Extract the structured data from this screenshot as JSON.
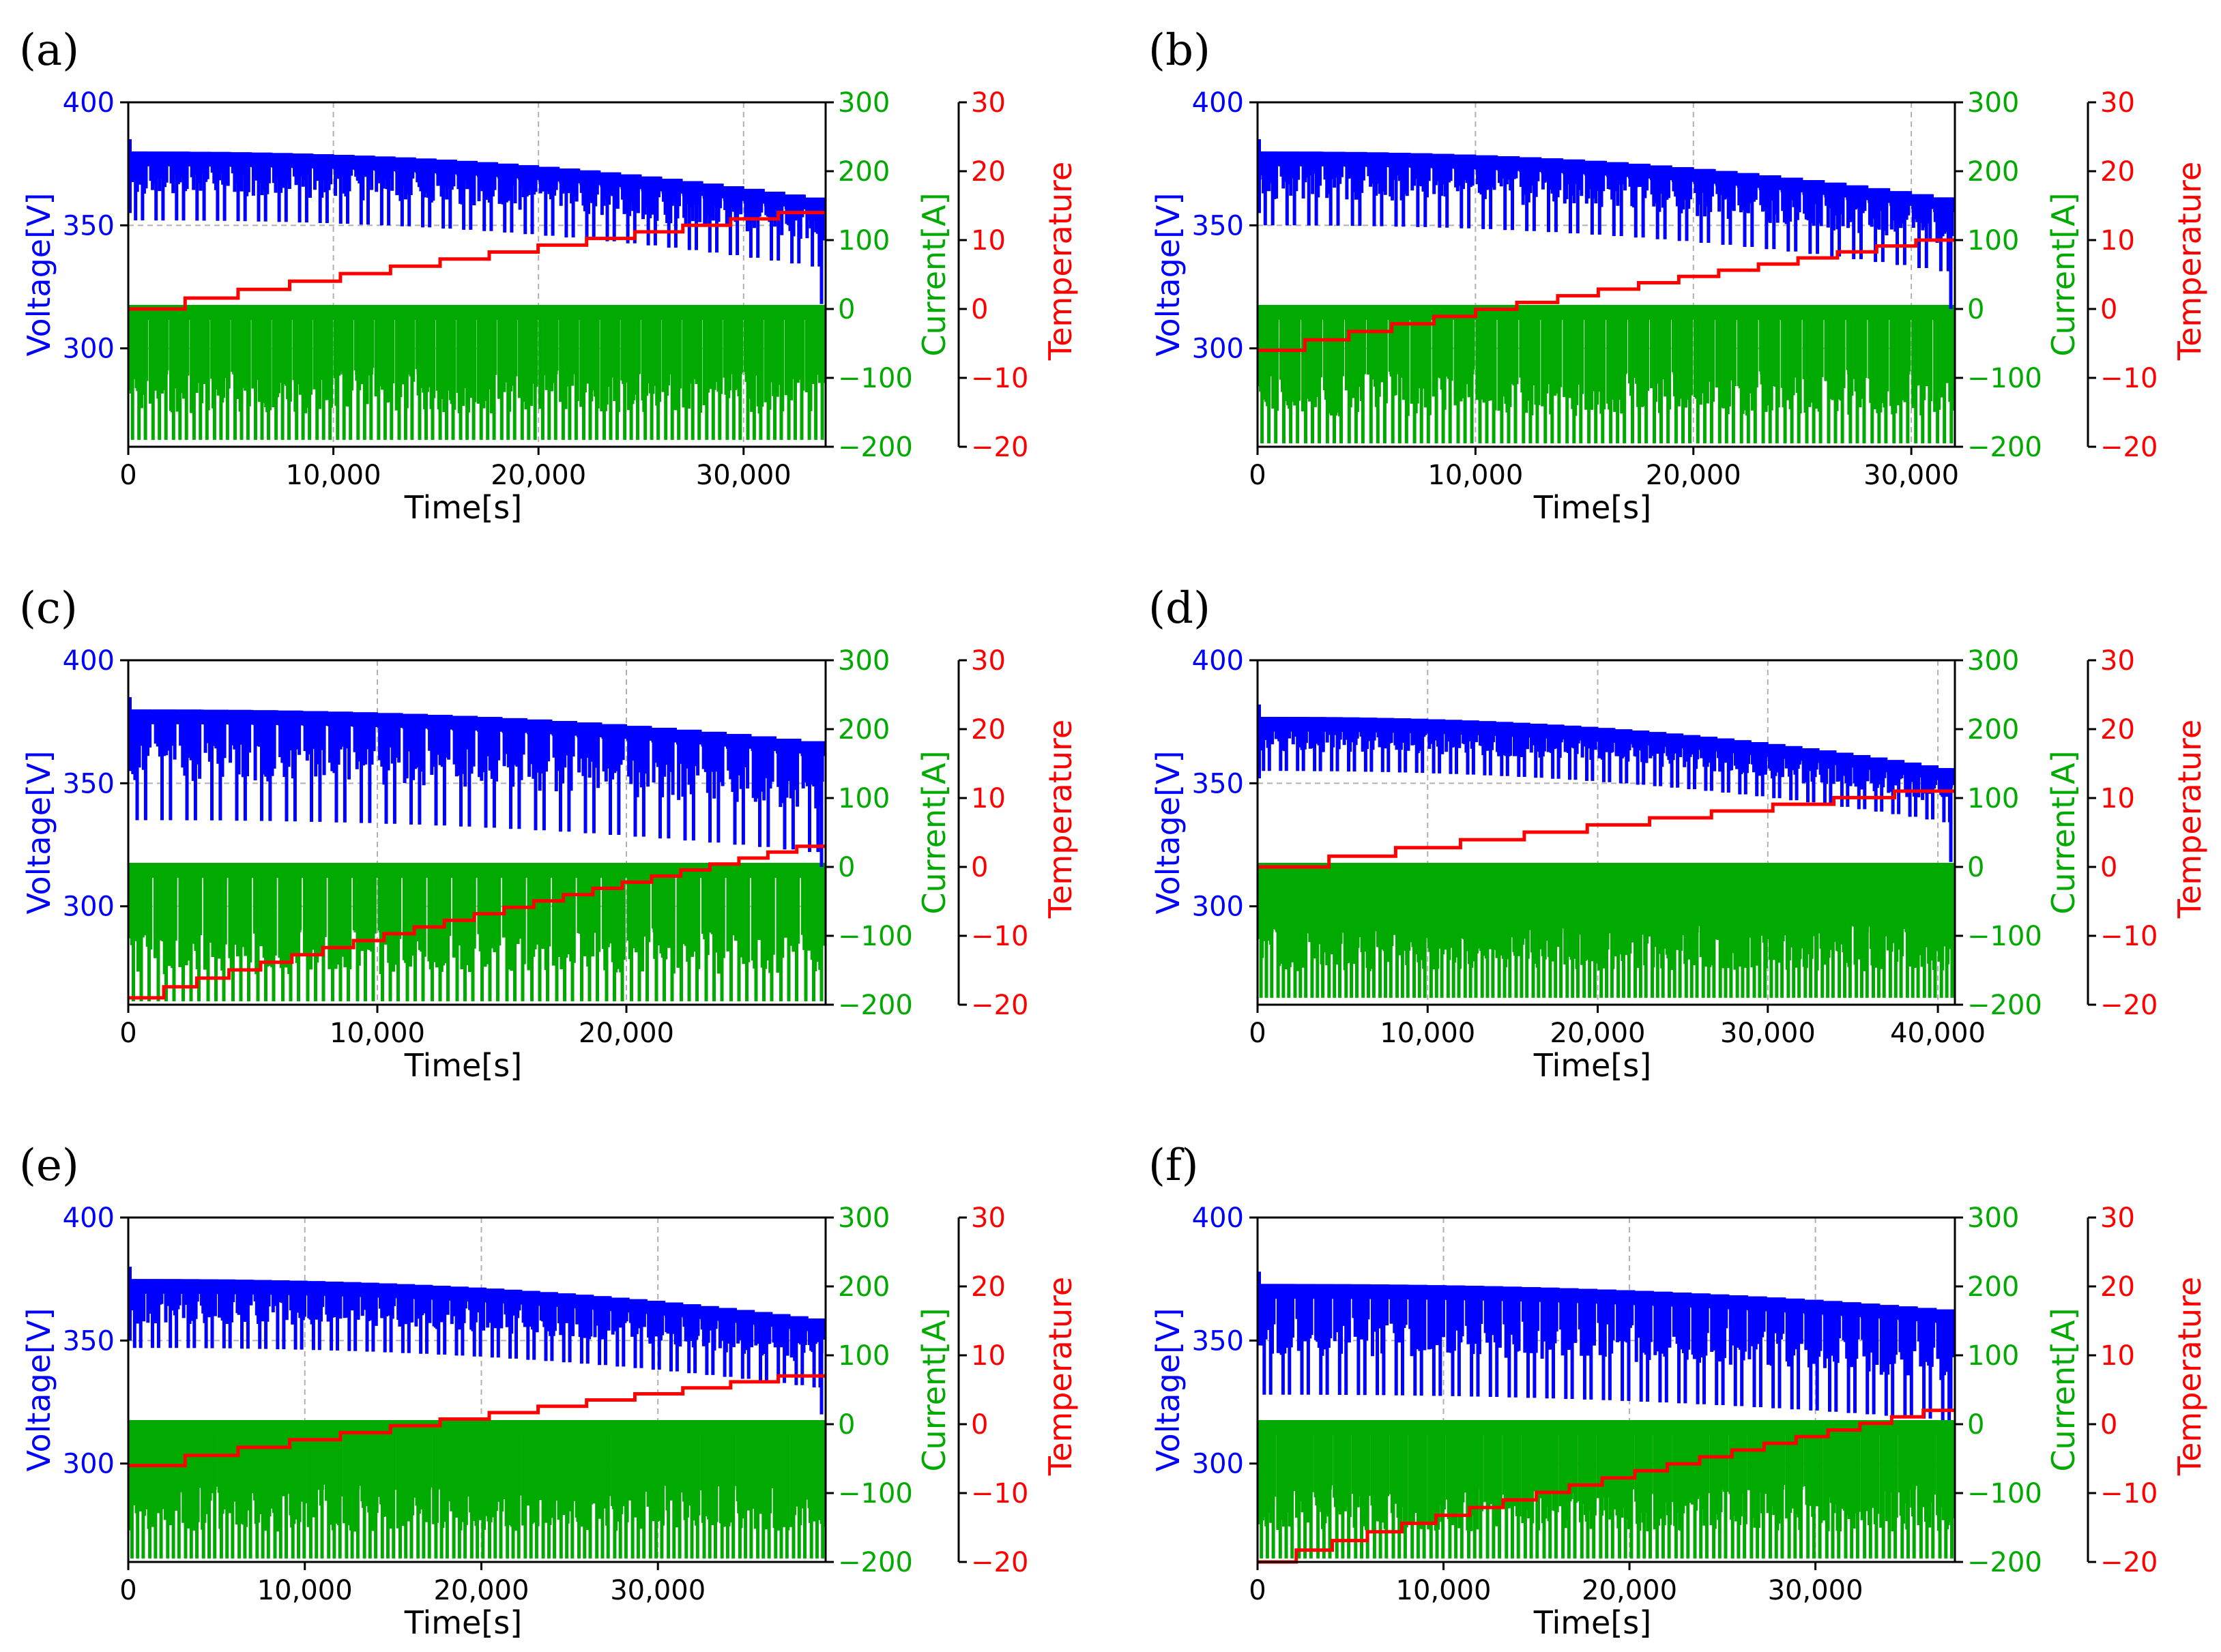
{
  "colors": {
    "voltage": "#0000ff",
    "current": "#00aa00",
    "temperature": "#ff0000",
    "grid": "#b0b0b0",
    "axis": "#000000"
  },
  "chart_data": [
    {
      "panel": "(a)",
      "type": "line",
      "xlabel": "Time[s]",
      "ylabel_left": "Voltage[V]",
      "ylabel_current": "Current[A]",
      "ylabel_temp": "Temperature",
      "xlim": [
        0,
        34000
      ],
      "xticks": [
        0,
        10000,
        20000,
        30000
      ],
      "xtick_labels": [
        "0",
        "10,000",
        "20,000",
        "30,000"
      ],
      "voltage_ylim": [
        260,
        400
      ],
      "voltage_ticks": [
        300,
        350,
        400
      ],
      "current_ylim": [
        -200,
        300
      ],
      "current_ticks": [
        -200,
        -100,
        0,
        100,
        200,
        300
      ],
      "current_tick_labels": [
        "−200",
        "−100",
        "0",
        "100",
        "200",
        "300"
      ],
      "temp_ylim": [
        -20,
        30
      ],
      "temp_ticks": [
        -20,
        -10,
        0,
        10,
        20,
        30
      ],
      "temp_tick_labels": [
        "−20",
        "−10",
        "0",
        "10",
        "20",
        "30"
      ],
      "grid": true,
      "series": [
        {
          "name": "Voltage",
          "axis": "voltage",
          "cycles": 34,
          "start": 385,
          "upper_end": 360,
          "dip_depth": 28,
          "deep_drop_end": 318
        },
        {
          "name": "Current",
          "axis": "current",
          "cycles": 34,
          "upper": 0,
          "lower": -190
        },
        {
          "name": "Temperature",
          "axis": "temp",
          "x": [
            0,
            34000
          ],
          "start": 0,
          "end": 14,
          "steps": 13
        }
      ]
    },
    {
      "panel": "(b)",
      "type": "line",
      "xlabel": "Time[s]",
      "ylabel_left": "Voltage[V]",
      "ylabel_current": "Current[A]",
      "ylabel_temp": "Temperature",
      "xlim": [
        0,
        32000
      ],
      "xticks": [
        0,
        10000,
        20000,
        30000
      ],
      "xtick_labels": [
        "0",
        "10,000",
        "20,000",
        "30,000"
      ],
      "voltage_ylim": [
        260,
        400
      ],
      "voltage_ticks": [
        300,
        350,
        400
      ],
      "current_ylim": [
        -200,
        300
      ],
      "current_ticks": [
        -200,
        -100,
        0,
        100,
        200,
        300
      ],
      "current_tick_labels": [
        "−200",
        "−100",
        "0",
        "100",
        "200",
        "300"
      ],
      "temp_ylim": [
        -20,
        30
      ],
      "temp_ticks": [
        -20,
        -10,
        0,
        10,
        20,
        30
      ],
      "temp_tick_labels": [
        "−20",
        "−10",
        "0",
        "10",
        "20",
        "30"
      ],
      "grid": true,
      "series": [
        {
          "name": "Voltage",
          "axis": "voltage",
          "cycles": 32,
          "start": 385,
          "upper_end": 360,
          "dip_depth": 30,
          "deep_drop_end": 316
        },
        {
          "name": "Current",
          "axis": "current",
          "cycles": 32,
          "upper": 0,
          "lower": -195
        },
        {
          "name": "Temperature",
          "axis": "temp",
          "x": [
            0,
            32000
          ],
          "start": -6,
          "end": 10,
          "steps": 16
        }
      ]
    },
    {
      "panel": "(c)",
      "type": "line",
      "xlabel": "Time[s]",
      "ylabel_left": "Voltage[V]",
      "ylabel_current": "Current[A]",
      "ylabel_temp": "Temperature",
      "xlim": [
        0,
        28000
      ],
      "xticks": [
        0,
        10000,
        20000
      ],
      "xtick_labels": [
        "0",
        "10,000",
        "20,000"
      ],
      "voltage_ylim": [
        260,
        400
      ],
      "voltage_ticks": [
        300,
        350,
        400
      ],
      "current_ylim": [
        -200,
        300
      ],
      "current_ticks": [
        -200,
        -100,
        0,
        100,
        200,
        300
      ],
      "current_tick_labels": [
        "−200",
        "−100",
        "0",
        "100",
        "200",
        "300"
      ],
      "temp_ylim": [
        -20,
        30
      ],
      "temp_ticks": [
        -20,
        -10,
        0,
        10,
        20,
        30
      ],
      "temp_tick_labels": [
        "−20",
        "−10",
        "0",
        "10",
        "20",
        "30"
      ],
      "grid": true,
      "series": [
        {
          "name": "Voltage",
          "axis": "voltage",
          "cycles": 28,
          "start": 385,
          "upper_end": 366,
          "dip_depth": 45,
          "deep_drop_end": 316
        },
        {
          "name": "Current",
          "axis": "current",
          "cycles": 28,
          "upper": 0,
          "lower": -195
        },
        {
          "name": "Temperature",
          "axis": "temp",
          "x": [
            0,
            28000
          ],
          "start": -19,
          "end": 3,
          "steps": 22
        }
      ]
    },
    {
      "panel": "(d)",
      "type": "line",
      "xlabel": "Time[s]",
      "ylabel_left": "Voltage[V]",
      "ylabel_current": "Current[A]",
      "ylabel_temp": "Temperature",
      "xlim": [
        0,
        41000
      ],
      "xticks": [
        0,
        10000,
        20000,
        30000,
        40000
      ],
      "xtick_labels": [
        "0",
        "10,000",
        "20,000",
        "30,000",
        "40,000"
      ],
      "voltage_ylim": [
        260,
        400
      ],
      "voltage_ticks": [
        300,
        350,
        400
      ],
      "current_ylim": [
        -200,
        300
      ],
      "current_ticks": [
        -200,
        -100,
        0,
        100,
        200,
        300
      ],
      "current_tick_labels": [
        "−200",
        "−100",
        "0",
        "100",
        "200",
        "300"
      ],
      "temp_ylim": [
        -20,
        30
      ],
      "temp_ticks": [
        -20,
        -10,
        0,
        10,
        20,
        30
      ],
      "temp_tick_labels": [
        "−20",
        "−10",
        "0",
        "10",
        "20",
        "30"
      ],
      "grid": true,
      "series": [
        {
          "name": "Voltage",
          "axis": "voltage",
          "cycles": 41,
          "start": 382,
          "upper_end": 355,
          "dip_depth": 22,
          "deep_drop_end": 318
        },
        {
          "name": "Current",
          "axis": "current",
          "cycles": 41,
          "upper": 0,
          "lower": -190
        },
        {
          "name": "Temperature",
          "axis": "temp",
          "x": [
            0,
            41000
          ],
          "start": 0,
          "end": 11,
          "steps": 10
        }
      ]
    },
    {
      "panel": "(e)",
      "type": "line",
      "xlabel": "Time[s]",
      "ylabel_left": "Voltage[V]",
      "ylabel_current": "Current[A]",
      "ylabel_temp": "Temperature",
      "xlim": [
        0,
        39500
      ],
      "xticks": [
        0,
        10000,
        20000,
        30000
      ],
      "xtick_labels": [
        "0",
        "10,000",
        "20,000",
        "30,000"
      ],
      "voltage_ylim": [
        260,
        400
      ],
      "voltage_ticks": [
        300,
        350,
        400
      ],
      "current_ylim": [
        -200,
        300
      ],
      "current_ticks": [
        -200,
        -100,
        0,
        100,
        200,
        300
      ],
      "current_tick_labels": [
        "−200",
        "−100",
        "0",
        "100",
        "200",
        "300"
      ],
      "temp_ylim": [
        -20,
        30
      ],
      "temp_ticks": [
        -20,
        -10,
        0,
        10,
        20,
        30
      ],
      "temp_tick_labels": [
        "−20",
        "−10",
        "0",
        "10",
        "20",
        "30"
      ],
      "grid": true,
      "series": [
        {
          "name": "Voltage",
          "axis": "voltage",
          "cycles": 39,
          "start": 380,
          "upper_end": 358,
          "dip_depth": 28,
          "deep_drop_end": 320
        },
        {
          "name": "Current",
          "axis": "current",
          "cycles": 39,
          "upper": 0,
          "lower": -195
        },
        {
          "name": "Temperature",
          "axis": "temp",
          "x": [
            0,
            39500
          ],
          "start": -6,
          "end": 7,
          "steps": 13
        }
      ]
    },
    {
      "panel": "(f)",
      "type": "line",
      "xlabel": "Time[s]",
      "ylabel_left": "Voltage[V]",
      "ylabel_current": "Current[A]",
      "ylabel_temp": "Temperature",
      "xlim": [
        0,
        37500
      ],
      "xticks": [
        0,
        10000,
        20000,
        30000
      ],
      "xtick_labels": [
        "0",
        "10,000",
        "20,000",
        "30,000"
      ],
      "voltage_ylim": [
        260,
        400
      ],
      "voltage_ticks": [
        300,
        350,
        400
      ],
      "current_ylim": [
        -200,
        300
      ],
      "current_ticks": [
        -200,
        -100,
        0,
        100,
        200,
        300
      ],
      "current_tick_labels": [
        "−200",
        "−100",
        "0",
        "100",
        "200",
        "300"
      ],
      "temp_ylim": [
        -20,
        30
      ],
      "temp_ticks": [
        -20,
        -10,
        0,
        10,
        20,
        30
      ],
      "temp_tick_labels": [
        "−20",
        "−10",
        "0",
        "10",
        "20",
        "30"
      ],
      "grid": true,
      "series": [
        {
          "name": "Voltage",
          "axis": "voltage",
          "cycles": 37,
          "start": 378,
          "upper_end": 362,
          "dip_depth": 45,
          "deep_drop_end": 322
        },
        {
          "name": "Current",
          "axis": "current",
          "cycles": 37,
          "upper": 0,
          "lower": -195
        },
        {
          "name": "Temperature",
          "axis": "temp",
          "x": [
            0,
            37500
          ],
          "start": -20,
          "end": 2,
          "steps": 20
        }
      ]
    }
  ]
}
